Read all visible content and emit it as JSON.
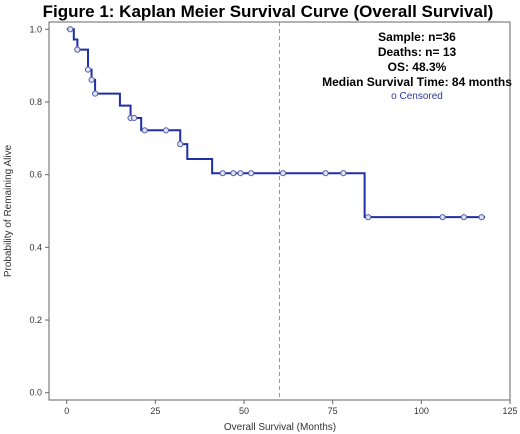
{
  "chart_data": {
    "type": "line",
    "title": "Figure 1: Kaplan Meier Survival Curve (Overall Survival)",
    "xlabel": "Overall Survival (Months)",
    "ylabel": "Probability of Remaining Alive",
    "xlim": [
      -5,
      125
    ],
    "ylim": [
      -0.02,
      1.02
    ],
    "xticks": [
      0,
      25,
      50,
      75,
      100,
      125
    ],
    "yticks": [
      0.0,
      0.2,
      0.4,
      0.6,
      0.8,
      1.0
    ],
    "xtick_labels": [
      "0",
      "25",
      "50",
      "75",
      "100",
      "125"
    ],
    "ytick_labels": [
      "0.0",
      "0.2",
      "0.4",
      "0.6",
      "0.8",
      "1.0"
    ],
    "grid": false,
    "reference_line_x": 60,
    "line_color": "#1f2fa8",
    "steps": [
      {
        "time": 0,
        "survival": 1.0
      },
      {
        "time": 2,
        "survival": 0.972
      },
      {
        "time": 3,
        "survival": 0.944
      },
      {
        "time": 6,
        "survival": 0.889
      },
      {
        "time": 7,
        "survival": 0.861
      },
      {
        "time": 8,
        "survival": 0.823
      },
      {
        "time": 15,
        "survival": 0.79
      },
      {
        "time": 18,
        "survival": 0.756
      },
      {
        "time": 21,
        "survival": 0.722
      },
      {
        "time": 32,
        "survival": 0.684
      },
      {
        "time": 34,
        "survival": 0.643
      },
      {
        "time": 41,
        "survival": 0.604
      },
      {
        "time": 84,
        "survival": 0.483
      }
    ],
    "end_time": 118,
    "censored": [
      {
        "time": 1,
        "survival": 1.0
      },
      {
        "time": 3,
        "survival": 0.944
      },
      {
        "time": 6,
        "survival": 0.889
      },
      {
        "time": 7,
        "survival": 0.861
      },
      {
        "time": 8,
        "survival": 0.823
      },
      {
        "time": 18,
        "survival": 0.756
      },
      {
        "time": 19,
        "survival": 0.756
      },
      {
        "time": 22,
        "survival": 0.722
      },
      {
        "time": 28,
        "survival": 0.722
      },
      {
        "time": 32,
        "survival": 0.684
      },
      {
        "time": 44,
        "survival": 0.604
      },
      {
        "time": 47,
        "survival": 0.604
      },
      {
        "time": 49,
        "survival": 0.604
      },
      {
        "time": 52,
        "survival": 0.604
      },
      {
        "time": 61,
        "survival": 0.604
      },
      {
        "time": 73,
        "survival": 0.604
      },
      {
        "time": 78,
        "survival": 0.604
      },
      {
        "time": 85,
        "survival": 0.483
      },
      {
        "time": 106,
        "survival": 0.483
      },
      {
        "time": 112,
        "survival": 0.483
      },
      {
        "time": 117,
        "survival": 0.483
      }
    ],
    "annotations": [
      "Sample: n=36",
      "Deaths: n= 13",
      "OS: 48.3%",
      "Median Survival Time: 84 months"
    ],
    "legend": {
      "label": "o Censored",
      "placement": "top-right"
    }
  }
}
